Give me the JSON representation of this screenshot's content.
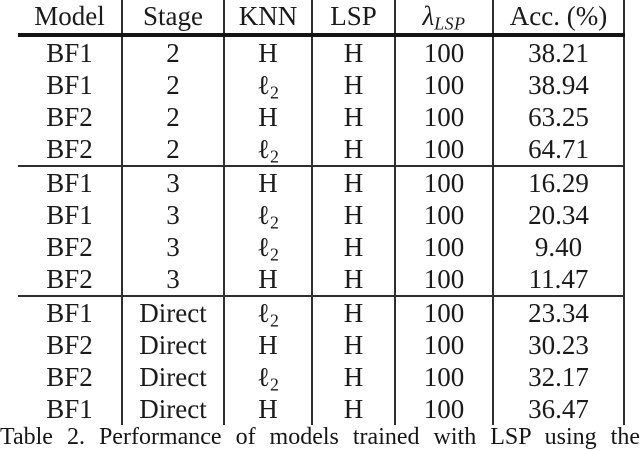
{
  "table": {
    "headers": [
      "Model",
      "Stage",
      "KNN",
      "LSP",
      {
        "base": "λ",
        "sub": "LSP"
      },
      "Acc. (%)"
    ],
    "rows": [
      {
        "model": "BF1",
        "stage": "2",
        "knn": "H",
        "knn_sub": "",
        "lsp": "H",
        "lambda": "100",
        "acc": "38.21"
      },
      {
        "model": "BF1",
        "stage": "2",
        "knn": "ℓ",
        "knn_sub": "2",
        "lsp": "H",
        "lambda": "100",
        "acc": "38.94"
      },
      {
        "model": "BF2",
        "stage": "2",
        "knn": "H",
        "knn_sub": "",
        "lsp": "H",
        "lambda": "100",
        "acc": "63.25"
      },
      {
        "model": "BF2",
        "stage": "2",
        "knn": "ℓ",
        "knn_sub": "2",
        "lsp": "H",
        "lambda": "100",
        "acc": "64.71"
      },
      {
        "model": "BF1",
        "stage": "3",
        "knn": "H",
        "knn_sub": "",
        "lsp": "H",
        "lambda": "100",
        "acc": "16.29"
      },
      {
        "model": "BF1",
        "stage": "3",
        "knn": "ℓ",
        "knn_sub": "2",
        "lsp": "H",
        "lambda": "100",
        "acc": "20.34"
      },
      {
        "model": "BF2",
        "stage": "3",
        "knn": "ℓ",
        "knn_sub": "2",
        "lsp": "H",
        "lambda": "100",
        "acc": "9.40"
      },
      {
        "model": "BF2",
        "stage": "3",
        "knn": "H",
        "knn_sub": "",
        "lsp": "H",
        "lambda": "100",
        "acc": "11.47"
      },
      {
        "model": "BF1",
        "stage": "Direct",
        "knn": "ℓ",
        "knn_sub": "2",
        "lsp": "H",
        "lambda": "100",
        "acc": "23.34"
      },
      {
        "model": "BF2",
        "stage": "Direct",
        "knn": "H",
        "knn_sub": "",
        "lsp": "H",
        "lambda": "100",
        "acc": "30.23"
      },
      {
        "model": "BF2",
        "stage": "Direct",
        "knn": "ℓ",
        "knn_sub": "2",
        "lsp": "H",
        "lambda": "100",
        "acc": "32.17"
      },
      {
        "model": "BF1",
        "stage": "Direct",
        "knn": "H",
        "knn_sub": "",
        "lsp": "H",
        "lambda": "100",
        "acc": "36.47"
      }
    ]
  },
  "caption": {
    "text": "Table 2. Performance of models trained with LSP using the"
  },
  "colors": {
    "text": "#1a1a1a",
    "rule": "#2e2e2e",
    "thick_rule": "#141414",
    "background": "#ffffff"
  }
}
